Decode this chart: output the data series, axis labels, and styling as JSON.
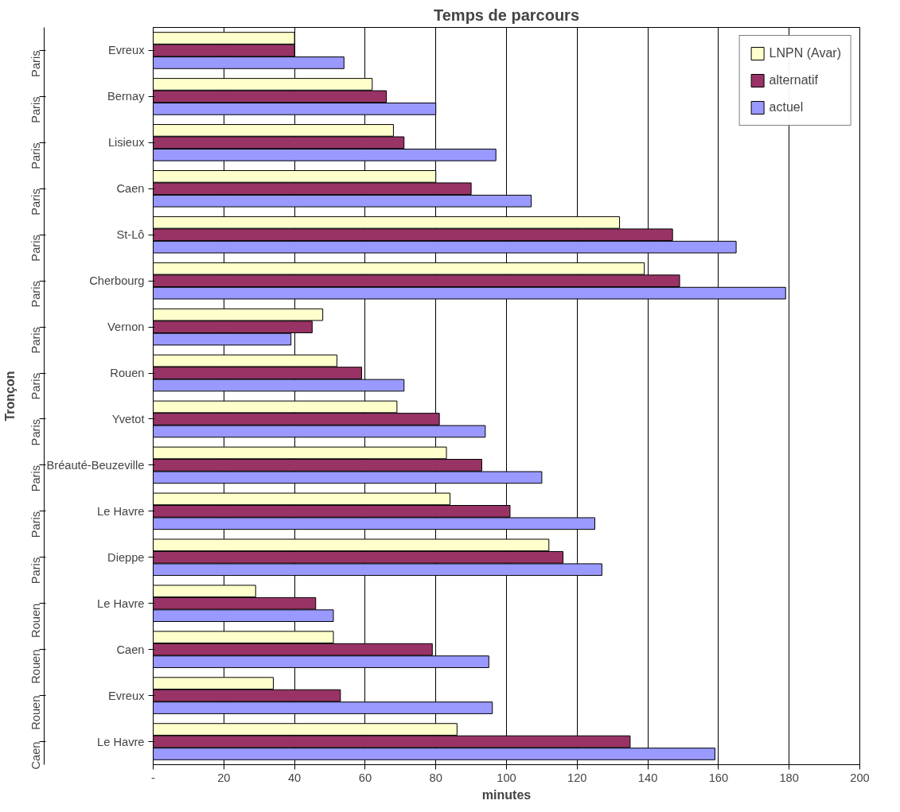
{
  "chart_data": {
    "type": "bar",
    "orientation": "horizontal",
    "title": "Temps de parcours",
    "xlabel": "minutes",
    "ylabel": "Tronçon",
    "categories": [
      "Evreux",
      "Bernay",
      "Lisieux",
      "Caen",
      "St-Lô",
      "Cherbourg",
      "Vernon",
      "Rouen",
      "Yvetot",
      "Bréauté-Beuzeville",
      "Le Havre",
      "Dieppe",
      "Le Havre",
      "Caen",
      "Evreux",
      "Le Havre"
    ],
    "annotations": [
      "Paris",
      "Paris",
      "Paris",
      "Paris",
      "Paris",
      "Paris",
      "Paris",
      "Paris",
      "Paris",
      "Paris",
      "Paris",
      "Paris",
      "Rouen",
      "Rouen",
      "Rouen",
      "Caen"
    ],
    "series": [
      {
        "name": "LNPN (Avar)",
        "color": "#ffffcc",
        "values": [
          40,
          62,
          68,
          80,
          132,
          139,
          48,
          52,
          69,
          83,
          84,
          112,
          29,
          51,
          34,
          86
        ]
      },
      {
        "name": "alternatif",
        "color": "#993366",
        "values": [
          40,
          66,
          71,
          90,
          147,
          149,
          45,
          59,
          81,
          93,
          101,
          116,
          46,
          79,
          53,
          135
        ]
      },
      {
        "name": "actuel",
        "color": "#9999ff",
        "values": [
          54,
          80,
          97,
          107,
          165,
          179,
          39,
          71,
          94,
          110,
          125,
          127,
          51,
          95,
          96,
          159
        ]
      }
    ],
    "xlim": [
      0,
      200
    ],
    "xticks": [
      {
        "value": 0,
        "label": "-"
      },
      20,
      40,
      60,
      80,
      100,
      120,
      140,
      160,
      180,
      200
    ],
    "grid": "x",
    "legend": "top right"
  }
}
